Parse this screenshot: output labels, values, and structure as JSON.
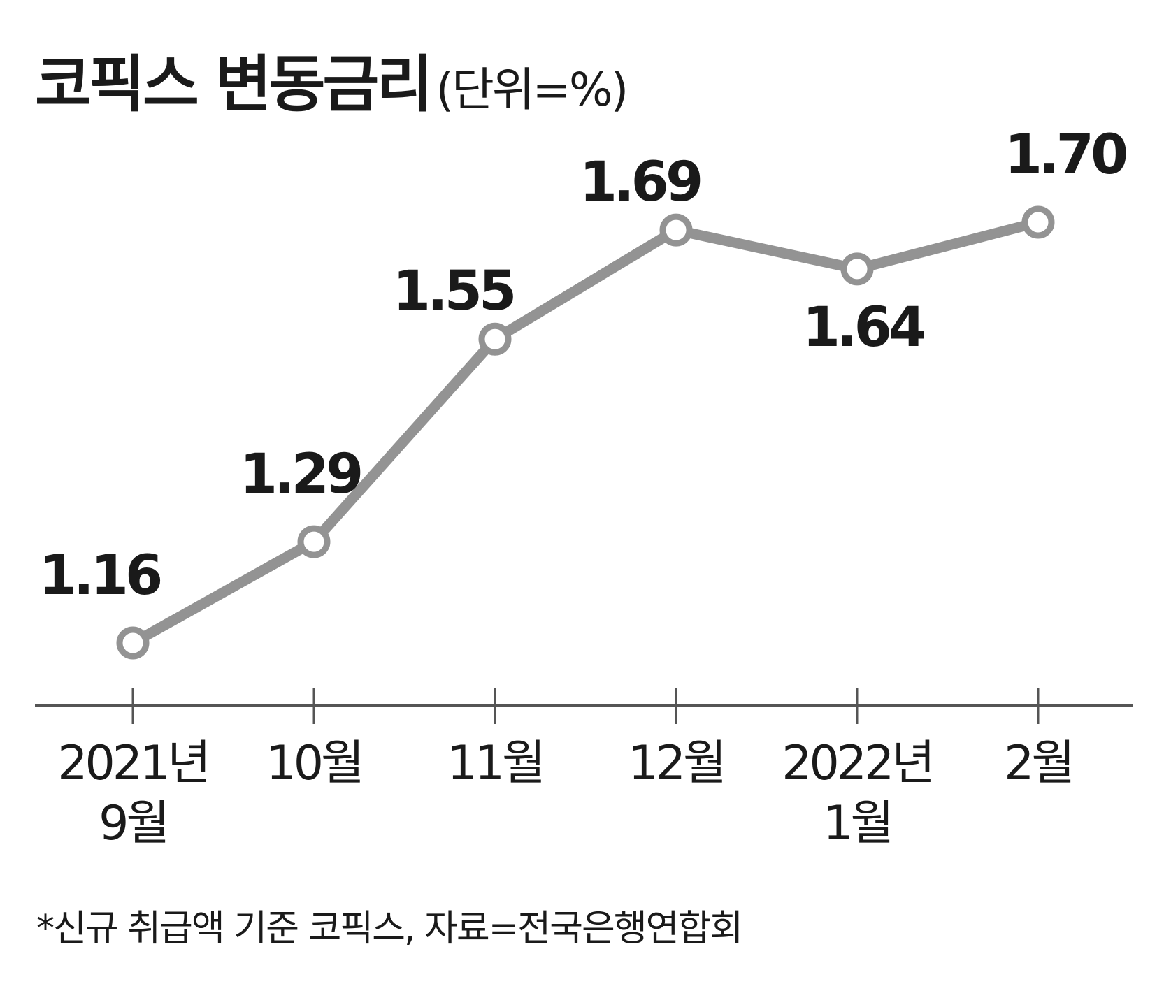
{
  "title": "코픽스 변동금리",
  "unit": "(단위=%)",
  "footnote": "*신규 취급액 기준 코픽스, 자료=전국은행연합회",
  "colors": {
    "line": "#939393",
    "marker_fill": "#ffffff",
    "text": "#1a1a1a",
    "axis": "#555555"
  },
  "chart_data": {
    "type": "line",
    "title": "코픽스 변동금리",
    "ylabel": "",
    "xlabel": "",
    "categories": [
      [
        "2021년",
        "9월"
      ],
      [
        "10월"
      ],
      [
        "11월"
      ],
      [
        "12월"
      ],
      [
        "2022년",
        "1월"
      ],
      [
        "2월"
      ]
    ],
    "series": [
      {
        "values": [
          1.16,
          1.29,
          1.55,
          1.69,
          1.64,
          1.7
        ]
      }
    ],
    "data_labels": [
      "1.16",
      "1.29",
      "1.55",
      "1.69",
      "1.64",
      "1.70"
    ],
    "label_placement": [
      "above",
      "above",
      "above",
      "above",
      "below",
      "above"
    ],
    "ylim": [
      1.0,
      1.8
    ],
    "grid": false,
    "legend": "none"
  }
}
